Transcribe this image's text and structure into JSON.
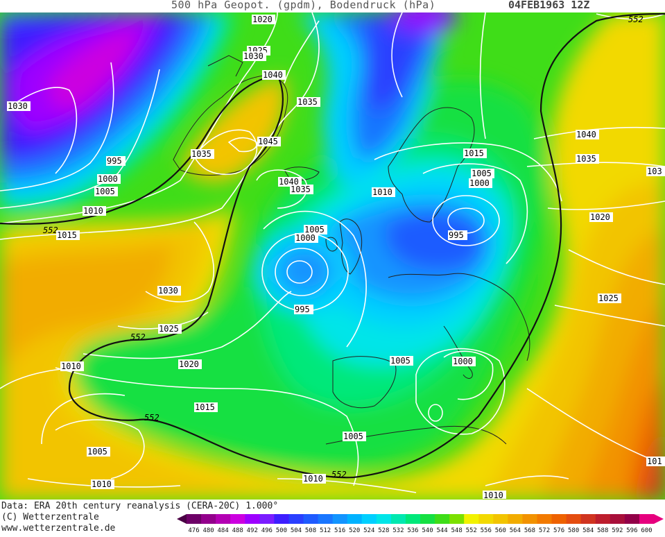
{
  "header": {
    "title": "500 hPa Geopot. (gpdm), Bodendruck (hPa)",
    "date": "04FEB1963 12Z"
  },
  "footer": {
    "source": "Data: ERA 20th century reanalysis (CERA-20C) 1.000°",
    "copyright": "(C) Wetterzentrale",
    "url": "www.wetterzentrale.de"
  },
  "legend": {
    "unit": "gpdm",
    "values": [
      "476",
      "480",
      "484",
      "488",
      "492",
      "496",
      "500",
      "504",
      "508",
      "512",
      "516",
      "520",
      "524",
      "528",
      "532",
      "536",
      "540",
      "544",
      "548",
      "552",
      "556",
      "560",
      "564",
      "568",
      "572",
      "576",
      "580",
      "584",
      "588",
      "592",
      "596",
      "600"
    ],
    "colors": [
      "#4a0045",
      "#6d0067",
      "#93008c",
      "#b300b3",
      "#cc00e0",
      "#9d00ff",
      "#7a1dff",
      "#3d1eff",
      "#2a3fff",
      "#1f5bff",
      "#1976ff",
      "#1294ff",
      "#00b2ff",
      "#00cfff",
      "#00e5e8",
      "#00e8b0",
      "#00e87a",
      "#16e043",
      "#3fdd18",
      "#7be000",
      "#f2f200",
      "#f2d900",
      "#f2c400",
      "#f2ac00",
      "#f29200",
      "#f27a00",
      "#ee6200",
      "#e44d10",
      "#d03420",
      "#bd1e2d",
      "#a80f3a",
      "#920048",
      "#e6007e"
    ]
  },
  "map": {
    "contour_552_label": "552",
    "isobar_labels": [
      {
        "text": "1020"
      },
      {
        "text": "1025"
      },
      {
        "text": "1030"
      },
      {
        "text": "1040"
      },
      {
        "text": "1030"
      },
      {
        "text": "1035"
      },
      {
        "text": "995"
      },
      {
        "text": "1000"
      },
      {
        "text": "1005"
      },
      {
        "text": "1010"
      },
      {
        "text": "1015"
      },
      {
        "text": "1035"
      },
      {
        "text": "1045"
      },
      {
        "text": "1040"
      },
      {
        "text": "1035"
      },
      {
        "text": "1010"
      },
      {
        "text": "1015"
      },
      {
        "text": "1005"
      },
      {
        "text": "1000"
      },
      {
        "text": "995"
      },
      {
        "text": "1005"
      },
      {
        "text": "1000"
      },
      {
        "text": "995"
      },
      {
        "text": "1030"
      },
      {
        "text": "1025"
      },
      {
        "text": "1020"
      },
      {
        "text": "1015"
      },
      {
        "text": "1010"
      },
      {
        "text": "1005"
      },
      {
        "text": "1010"
      },
      {
        "text": "1005"
      },
      {
        "text": "1005"
      },
      {
        "text": "1000"
      },
      {
        "text": "1010"
      },
      {
        "text": "1010"
      },
      {
        "text": "1040"
      },
      {
        "text": "1035"
      },
      {
        "text": "1020"
      },
      {
        "text": "1025"
      },
      {
        "text": "103"
      },
      {
        "text": "101"
      }
    ],
    "contour_552_labels": [
      {
        "text": "552"
      },
      {
        "text": "552"
      },
      {
        "text": "552"
      },
      {
        "text": "552"
      },
      {
        "text": "552"
      }
    ]
  }
}
